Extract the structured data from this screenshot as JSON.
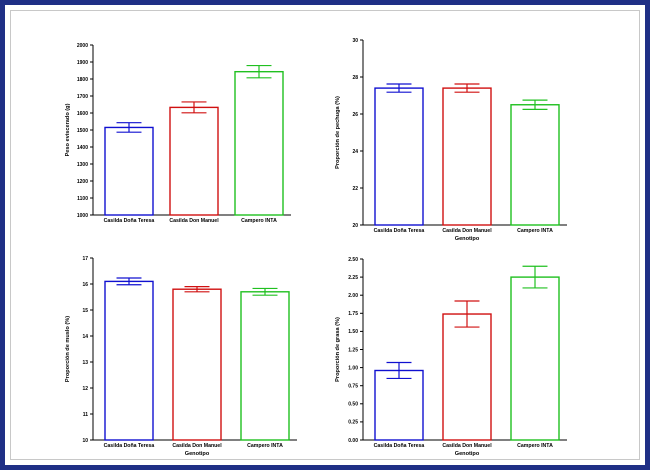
{
  "colors": {
    "frame": "#1f2f86",
    "series": [
      "#1010d0",
      "#d01010",
      "#20c020"
    ]
  },
  "chart_data": [
    {
      "type": "bar",
      "ylabel": "Peso eviscerado (g)",
      "xlabel": "",
      "categories": [
        "Casilda Doña Teresa",
        "Casilda Don Manuel",
        "Campero INTA"
      ],
      "values": [
        1515,
        1633,
        1843
      ],
      "errors": [
        28,
        32,
        36
      ],
      "ylim": [
        1000,
        2000
      ],
      "yticks": [
        1000,
        1100,
        1200,
        1300,
        1400,
        1500,
        1600,
        1700,
        1800,
        1900,
        2000
      ],
      "yticklabels": [
        "1000",
        "1100",
        "1200",
        "1300",
        "1400",
        "1500",
        "1600",
        "1700",
        "1800",
        "1900",
        "2000"
      ]
    },
    {
      "type": "bar",
      "ylabel": "Proporción de pechuga (%)",
      "xlabel": "Genotipo",
      "categories": [
        "Casilda Doña Teresa",
        "Casilda Don Manuel",
        "Campero INTA"
      ],
      "values": [
        27.4,
        27.4,
        26.5
      ],
      "errors": [
        0.22,
        0.22,
        0.25
      ],
      "ylim": [
        20,
        30
      ],
      "yticks": [
        20,
        22,
        24,
        26,
        28,
        30
      ],
      "yticklabels": [
        "20",
        "22",
        "24",
        "26",
        "28",
        "30"
      ]
    },
    {
      "type": "bar",
      "ylabel": "Proporción de muslo (%)",
      "xlabel": "Genotipo",
      "categories": [
        "Casilda Doña Teresa",
        "Casilda Don Manuel",
        "Campero INTA"
      ],
      "values": [
        16.1,
        15.8,
        15.7
      ],
      "errors": [
        0.13,
        0.1,
        0.13
      ],
      "ylim": [
        10,
        17
      ],
      "yticks": [
        10,
        11,
        12,
        13,
        14,
        15,
        16,
        17
      ],
      "yticklabels": [
        "10",
        "11",
        "12",
        "13",
        "14",
        "15",
        "16",
        "17"
      ]
    },
    {
      "type": "bar",
      "ylabel": "Proporción de grasa (%)",
      "xlabel": "Genotipo",
      "categories": [
        "Casilda Doña Teresa",
        "Casilda Don Manuel",
        "Campero INTA"
      ],
      "values": [
        0.96,
        1.74,
        2.25
      ],
      "errors": [
        0.11,
        0.18,
        0.15
      ],
      "ylim": [
        0,
        2.5
      ],
      "yticks": [
        0,
        0.25,
        0.5,
        0.75,
        1.0,
        1.25,
        1.5,
        1.75,
        2.0,
        2.25,
        2.5
      ],
      "yticklabels": [
        "0.00",
        "0.25",
        "0.50",
        "0.75",
        "1.00",
        "1.25",
        "1.50",
        "1.75",
        "2.00",
        "2.25",
        "2.50"
      ]
    }
  ]
}
